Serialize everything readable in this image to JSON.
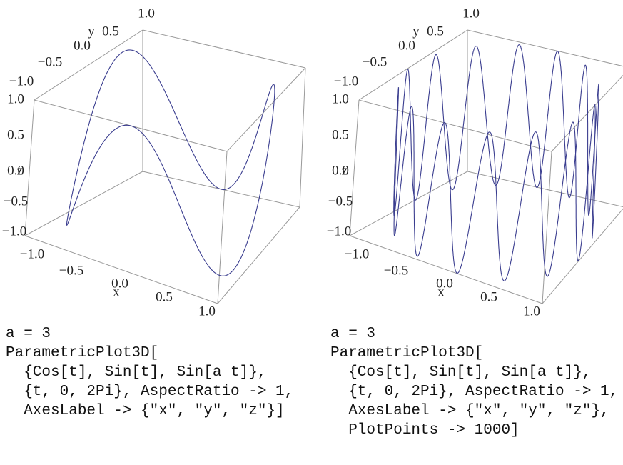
{
  "panels": [
    {
      "x_ticks": [
        "−1.0",
        "−0.5",
        "0.0",
        "0.5",
        "1.0"
      ],
      "y_ticks": [
        "−1.0",
        "−0.5",
        "0.0",
        "0.5",
        "1.0"
      ],
      "z_ticks": [
        "1.0",
        "0.5",
        "0.0",
        "−0.5",
        "−1.0"
      ],
      "axis_labels": {
        "x": "x",
        "y": "y",
        "z": "z"
      },
      "code": [
        "a = 3",
        "ParametricPlot3D[",
        "  {Cos[t], Sin[t], Sin[a t]},",
        "  {t, 0, 2Pi}, AspectRatio -> 1,",
        "  AxesLabel -> {\"x\", \"y\", \"z\"}]"
      ]
    },
    {
      "x_ticks": [
        "−1.0",
        "−0.5",
        "0.0",
        "0.5",
        "1.0"
      ],
      "y_ticks": [
        "−1.0",
        "−0.5",
        "0.0",
        "0.5",
        "1.0"
      ],
      "z_ticks": [
        "1.0",
        "0.5",
        "0.0",
        "−0.5",
        "−1.0"
      ],
      "axis_labels": {
        "x": "x",
        "y": "y",
        "z": "z"
      },
      "code": [
        "a = 3",
        "ParametricPlot3D[",
        "  {Cos[t], Sin[t], Sin[a t]},",
        "  {t, 0, 2Pi}, AspectRatio -> 1,",
        "  AxesLabel -> {\"x\", \"y\", \"z\"},",
        "  PlotPoints -> 1000]"
      ]
    }
  ]
}
